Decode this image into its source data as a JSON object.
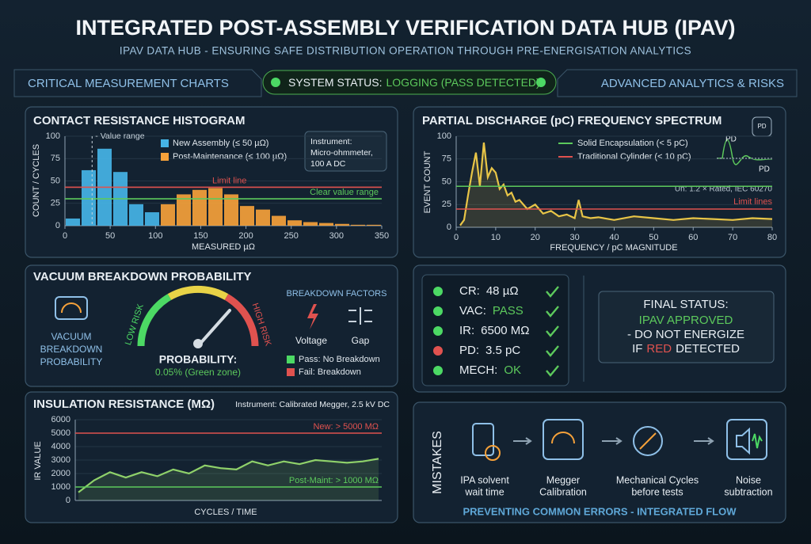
{
  "header": {
    "title": "INTEGRATED POST-ASSEMBLY VERIFICATION DATA HUB (IPAV)",
    "subtitle": "IPAV DATA HUB - ENSURING SAFE DISTRIBUTION OPERATION THROUGH PRE-ENERGISATION ANALYTICS"
  },
  "nav": {
    "left": "CRITICAL MEASUREMENT CHARTS",
    "status_label": "SYSTEM STATUS:",
    "status_value": "LOGGING (PASS DETECTED)",
    "right": "ADVANCED ANALYTICS & RISKS"
  },
  "chart_data": [
    {
      "type": "histogram",
      "title": "CONTACT RESISTANCE HISTOGRAM",
      "x_label": "MEASURED µΩ",
      "y_label": "COUNT / CYCLES",
      "bins": [
        0,
        17.5,
        35,
        52.5,
        70,
        87.5,
        105,
        122.5,
        140,
        157.5,
        175,
        192.5,
        210,
        227.5,
        245,
        262.5,
        280,
        297.5,
        315,
        332.5,
        350
      ],
      "series": [
        {
          "name": "New Assembly (≤ 50 µΩ)",
          "color": "#45b4e6",
          "values": [
            8,
            62,
            86,
            60,
            24,
            15,
            null,
            null,
            null,
            null,
            null,
            null,
            null,
            null,
            null,
            null,
            null,
            null,
            null,
            null
          ]
        },
        {
          "name": "Post-Maintenance (≤ 100 µΩ)",
          "color": "#f5a13a",
          "values": [
            null,
            null,
            null,
            null,
            null,
            null,
            24,
            35,
            40,
            42,
            35,
            22,
            18,
            11,
            6,
            4,
            3,
            2,
            1,
            1
          ]
        }
      ],
      "xlim": [
        0,
        350
      ],
      "xticks": [
        0,
        50,
        100,
        150,
        200,
        250,
        300,
        350
      ],
      "ylim": [
        0,
        100
      ],
      "yticks": [
        0,
        25,
        50,
        75,
        100
      ],
      "thresholds": [
        {
          "label": "Limit line",
          "value": 43,
          "color": "#e0524f"
        },
        {
          "label": "Clear value range",
          "value": 30,
          "color": "#5cc95c"
        }
      ],
      "marker": {
        "label": "- Value range",
        "value": 30
      },
      "note": [
        "Instrument:",
        "Micro-ohmmeter,",
        "100 A DC"
      ]
    },
    {
      "type": "line",
      "title": "PARTIAL DISCHARGE (pC) FREQUENCY SPECTRUM",
      "x_label": "FREQUENCY / pC MAGNITUDE",
      "y_label": "EVENT COUNT",
      "x": [
        1,
        2,
        3,
        4,
        5,
        6,
        7,
        8,
        9,
        10,
        11,
        12,
        13,
        14,
        15,
        16,
        18,
        20,
        22,
        24,
        26,
        28,
        30,
        31,
        32,
        34,
        36,
        40,
        45,
        50,
        55,
        60,
        65,
        70,
        75,
        80
      ],
      "values": [
        2,
        8,
        35,
        60,
        82,
        45,
        93,
        55,
        65,
        60,
        42,
        47,
        35,
        38,
        28,
        30,
        20,
        25,
        15,
        18,
        12,
        14,
        10,
        30,
        12,
        10,
        11,
        8,
        12,
        10,
        8,
        10,
        9,
        8,
        10,
        9
      ],
      "color": "#e8c547",
      "xlim": [
        0,
        80
      ],
      "xticks": [
        0,
        10,
        20,
        30,
        40,
        50,
        60,
        70,
        80
      ],
      "ylim": [
        0,
        100
      ],
      "yticks": [
        0,
        25,
        50,
        75,
        100
      ],
      "thresholds": [
        {
          "name": "Solid Encapsulation (< 5 pC)",
          "value": 45,
          "color": "#5cc95c"
        },
        {
          "name": "Traditional Cylinder (< 10 pC)",
          "value": 20,
          "color": "#e0524f"
        }
      ],
      "annotations": [
        "Un: 1.2 × Rated, IEC 60270",
        "Limit lines"
      ],
      "icon_labels": [
        "PD",
        "PD",
        "PD"
      ]
    },
    {
      "type": "line",
      "title": "INSULATION RESISTANCE (MΩ)",
      "subtitle": "Instrument: Calibrated Megger, 2.5 kV DC",
      "x_label": "CYCLES / TIME",
      "y_label": "IR VALUE",
      "values": [
        600,
        1500,
        2100,
        1700,
        2100,
        1800,
        2300,
        2000,
        2600,
        2400,
        2300,
        2900,
        2600,
        2900,
        2700,
        3000,
        2900,
        2800,
        2900,
        3100
      ],
      "color": "#8fd16a",
      "ylim": [
        0,
        6000
      ],
      "yticks": [
        0,
        1000,
        2000,
        3000,
        4000,
        5000,
        6000
      ],
      "thresholds": [
        {
          "label": "New: > 5000 MΩ",
          "value": 5000,
          "color": "#e0524f"
        },
        {
          "label": "Post-Maint: > 1000 MΩ",
          "value": 1000,
          "color": "#5cc95c"
        }
      ]
    }
  ],
  "vacuum": {
    "title": "VACUUM BREAKDOWN PROBABILITY",
    "icon_label": [
      "VACUUM",
      "BREAKDOWN",
      "PROBABILITY"
    ],
    "low": "LOW RISK",
    "high": "HIGH RISK",
    "probability_label": "PROBABILITY:",
    "probability": "0.05% (Green zone)",
    "factors_title": "BREAKDOWN FACTORS",
    "factors": [
      "Voltage",
      "Gap"
    ],
    "legend": [
      "Pass: No Breakdown",
      "Fail: Breakdown"
    ]
  },
  "checks": [
    {
      "label": "CR:",
      "value": "48 µΩ",
      "status": "#4cd964"
    },
    {
      "label": "VAC:",
      "value": "PASS",
      "status": "#4cd964",
      "value_color": "#5cc95c"
    },
    {
      "label": "IR:",
      "value": "6500 MΩ",
      "status": "#4cd964"
    },
    {
      "label": "PD:",
      "value": "3.5 pC",
      "status": "#e0524f"
    },
    {
      "label": "MECH:",
      "value": "OK",
      "status": "#4cd964",
      "value_color": "#5cc95c"
    }
  ],
  "final": {
    "title": "FINAL STATUS:",
    "approved": "IPAV APPROVED",
    "line2": "- DO NOT ENERGIZE",
    "line3": [
      "IF",
      "RED",
      "DETECTED"
    ]
  },
  "mistakes": {
    "title": "MISTAKES",
    "steps": [
      [
        "IPA solvent",
        "wait time"
      ],
      [
        "Megger",
        "Calibration"
      ],
      [
        "Mechanical Cycles",
        "before tests"
      ],
      [
        "Noise",
        "subtraction"
      ]
    ],
    "footer": "PREVENTING COMMON ERRORS - INTEGRATED FLOW"
  }
}
